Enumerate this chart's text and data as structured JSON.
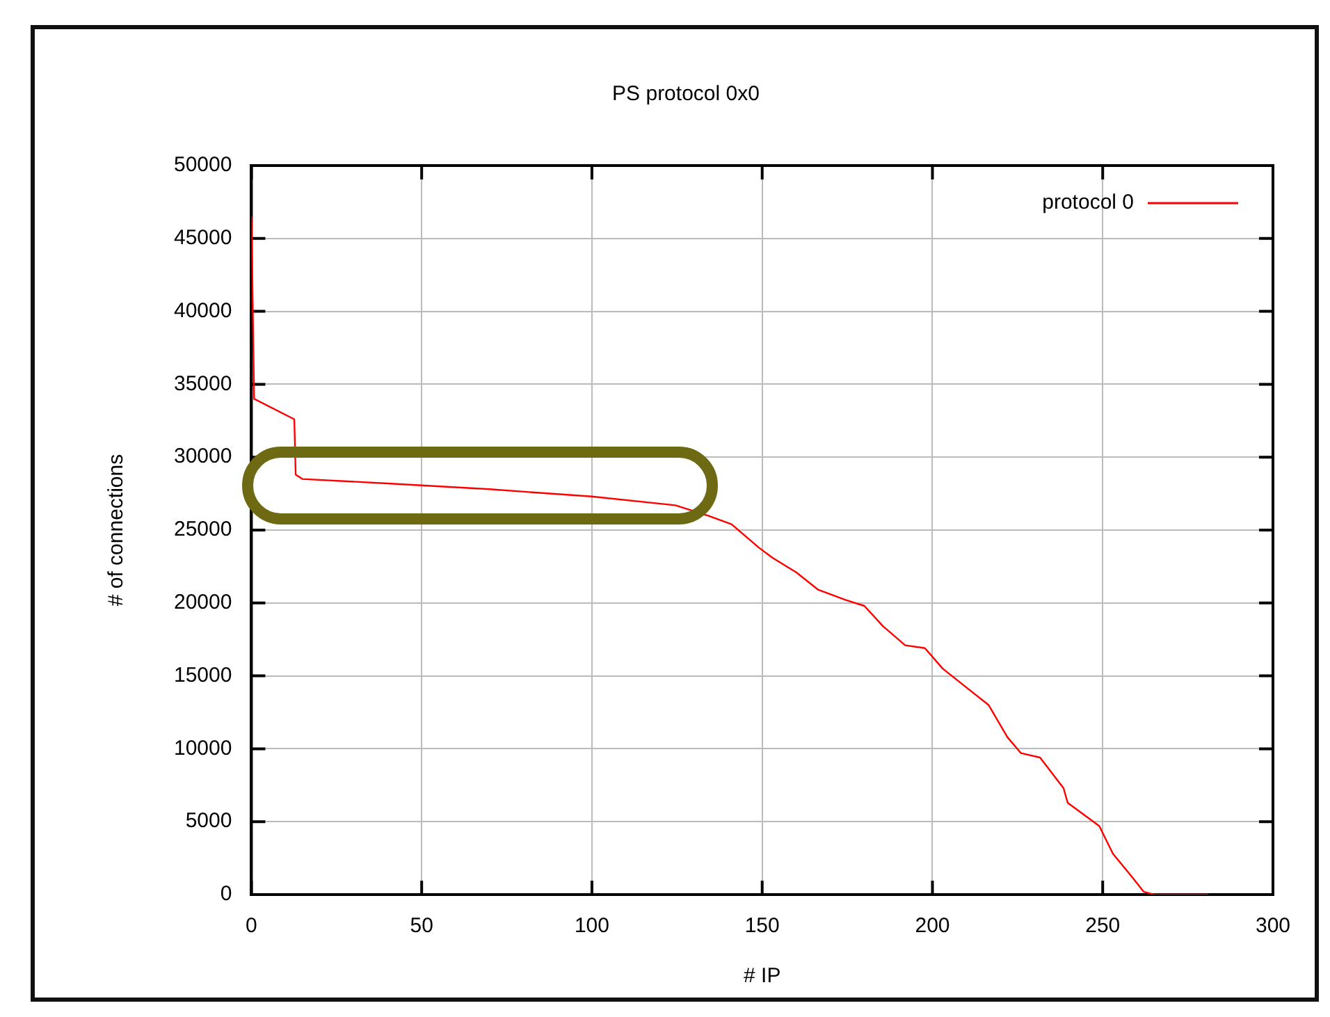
{
  "chart_data": {
    "type": "line",
    "title": "PS protocol 0x0",
    "xlabel": "# IP",
    "ylabel": "# of connections",
    "x": [
      0,
      0.8,
      12.6,
      13,
      15,
      40,
      70,
      100,
      124.5,
      134,
      141,
      149,
      153,
      160,
      166.5,
      174.6,
      180,
      185.5,
      192,
      197.8,
      203,
      210,
      216.5,
      222,
      226,
      231.6,
      238.5,
      239.7,
      249,
      253,
      259,
      262,
      265,
      281
    ],
    "series": [
      {
        "name": "protocol 0",
        "color": "#ff0000",
        "values": [
          46500,
          34000,
          32600,
          28800,
          28500,
          28200,
          27800,
          27300,
          26700,
          26000,
          25400,
          23800,
          23100,
          22100,
          20900,
          20200,
          19800,
          18400,
          17100,
          16900,
          15500,
          14200,
          13000,
          10800,
          9700,
          9400,
          7300,
          6300,
          4700,
          2800,
          1100,
          200,
          0,
          0
        ]
      }
    ],
    "xlim": [
      0,
      300
    ],
    "xticks": [
      0,
      50,
      100,
      150,
      200,
      250,
      300
    ],
    "ylim": [
      0,
      50000
    ],
    "yticks": [
      0,
      5000,
      10000,
      15000,
      20000,
      25000,
      30000,
      35000,
      40000,
      45000,
      50000
    ],
    "grid": true,
    "legend": "top right",
    "marker": "none",
    "line_style": "solid"
  }
}
